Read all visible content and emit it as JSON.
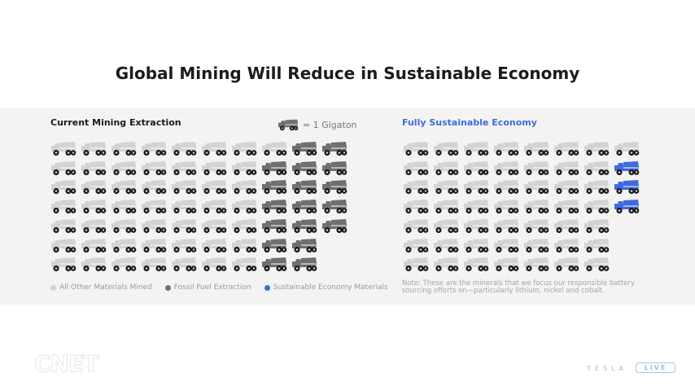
{
  "slide_title": "Global Mining Will Reduce in Sustainable Economy",
  "key": {
    "icon": "dump-truck-icon",
    "label": "= 1 Gigaton"
  },
  "colors": {
    "all_other": "#d3d3d3",
    "fossil_fuel": "#6f6f6f",
    "sustainable": "#3e6ae1"
  },
  "legend": [
    {
      "label": "All Other Materials Mined",
      "color": "#d3d3d3"
    },
    {
      "label": "Fossil Fuel Extraction",
      "color": "#6f6f6f"
    },
    {
      "label": "Sustainable Economy Materials",
      "color": "#3e6ae1"
    }
  ],
  "note": "Note: These are the minerals that we focus our responsible battery sourcing efforts on—particularly lithium, nickel and cobalt.",
  "branding": {
    "tesla": "TESLA",
    "live": "LIVE",
    "cnet": "CNET"
  },
  "chart_data": [
    {
      "type": "table",
      "title": "Current Mining Extraction",
      "unit": "Gigaton",
      "columns_per_row": 10,
      "rows": [
        {
          "all_other": 8,
          "fossil_fuel": 2,
          "sustainable": 0
        },
        {
          "all_other": 7,
          "fossil_fuel": 3,
          "sustainable": 0
        },
        {
          "all_other": 7,
          "fossil_fuel": 3,
          "sustainable": 0
        },
        {
          "all_other": 7,
          "fossil_fuel": 3,
          "sustainable": 0
        },
        {
          "all_other": 7,
          "fossil_fuel": 3,
          "sustainable": 0
        },
        {
          "all_other": 7,
          "fossil_fuel": 2,
          "sustainable": 0
        },
        {
          "all_other": 7,
          "fossil_fuel": 2,
          "sustainable": 0
        }
      ],
      "totals": {
        "all_other": 50,
        "fossil_fuel": 18,
        "sustainable": 0
      }
    },
    {
      "type": "table",
      "title": "Fully Sustainable Economy",
      "unit": "Gigaton",
      "columns_per_row": 8,
      "rows": [
        {
          "all_other": 8,
          "fossil_fuel": 0,
          "sustainable": 0
        },
        {
          "all_other": 7,
          "fossil_fuel": 0,
          "sustainable": 1
        },
        {
          "all_other": 7,
          "fossil_fuel": 0,
          "sustainable": 1
        },
        {
          "all_other": 7,
          "fossil_fuel": 0,
          "sustainable": 1
        },
        {
          "all_other": 7,
          "fossil_fuel": 0,
          "sustainable": 0
        },
        {
          "all_other": 7,
          "fossil_fuel": 0,
          "sustainable": 0
        },
        {
          "all_other": 7,
          "fossil_fuel": 0,
          "sustainable": 0
        }
      ],
      "totals": {
        "all_other": 50,
        "fossil_fuel": 0,
        "sustainable": 3
      }
    }
  ]
}
